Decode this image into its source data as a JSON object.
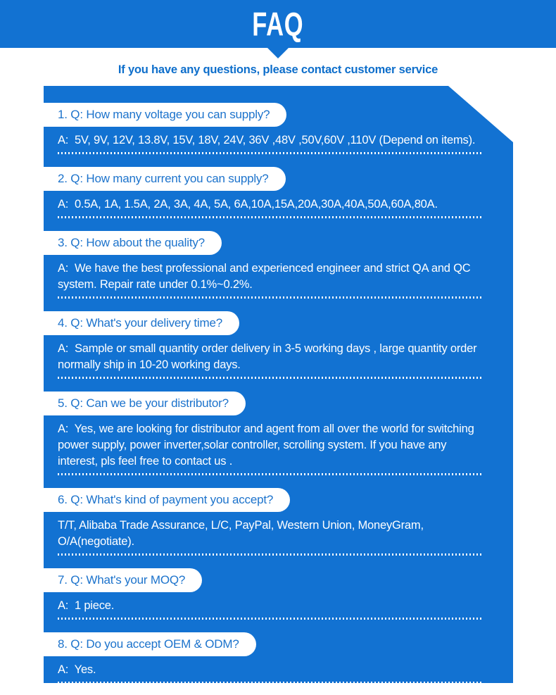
{
  "theme": {
    "accent_blue": "#1272d2",
    "question_text_color": "#1c73cc",
    "subtitle_text_color": "#0d6ecb",
    "pill_background": "#ffffff",
    "answer_text_color": "#ffffff"
  },
  "banner": {
    "title": "FAQ",
    "subtitle": "If you have any questions, please contact customer service"
  },
  "faq": {
    "items": [
      {
        "question": "1. Q: How many voltage you can supply?",
        "answer": "A:  5V, 9V, 12V, 13.8V, 15V, 18V, 24V, 36V ,48V ,50V,60V ,110V (Depend on items)."
      },
      {
        "question": "2. Q: How many current you can supply?",
        "answer": "A:  0.5A, 1A, 1.5A, 2A, 3A, 4A, 5A, 6A,10A,15A,20A,30A,40A,50A,60A,80A."
      },
      {
        "question": "3. Q: How about the quality?",
        "answer": "A:  We have the best professional and experienced engineer and strict QA and QC system. Repair rate under 0.1%~0.2%."
      },
      {
        "question": "4. Q: What's your delivery time?",
        "answer": "A:  Sample or small quantity order delivery in 3-5 working days , large quantity order normally ship in 10-20 working days."
      },
      {
        "question": "5. Q: Can we be your distributor?",
        "answer": "A:  Yes, we are looking for distributor and agent from all over the world for switching power supply, power inverter,solar controller, scrolling system. If you have any interest, pls feel free to contact us ."
      },
      {
        "question": "6. Q: What's kind of payment you accept?",
        "answer": "T/T, Alibaba Trade Assurance, L/C, PayPal, Western Union, MoneyGram, O/A(negotiate)."
      },
      {
        "question": "7. Q: What's your MOQ?",
        "answer": "A:  1 piece."
      },
      {
        "question": "8. Q: Do you accept OEM & ODM?",
        "answer": "A:  Yes."
      }
    ]
  }
}
